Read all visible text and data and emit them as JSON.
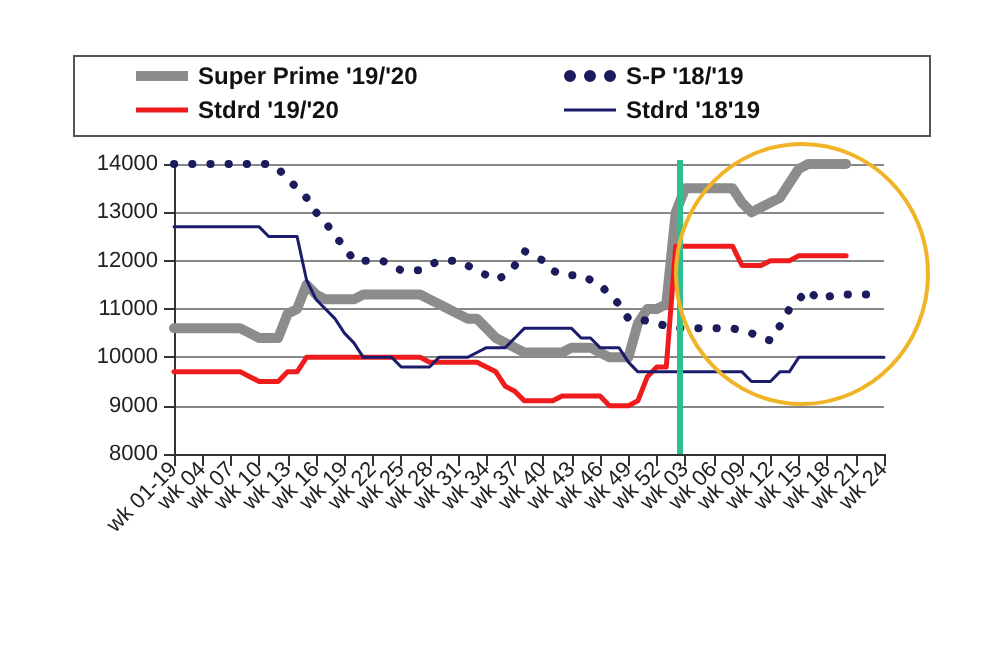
{
  "chart_data": {
    "type": "line",
    "categories": [
      "wk 01-19",
      null,
      null,
      "wk 04",
      null,
      null,
      "wk 07",
      null,
      null,
      "wk 10",
      null,
      null,
      "wk 13",
      null,
      null,
      "wk 16",
      null,
      null,
      "wk 19",
      null,
      null,
      "wk 22",
      null,
      null,
      "wk 25",
      null,
      null,
      "wk 28",
      null,
      null,
      "wk 31",
      null,
      null,
      "wk 34",
      null,
      null,
      "wk 37",
      null,
      null,
      "wk 40",
      null,
      null,
      "wk 43",
      null,
      null,
      "wk 46",
      null,
      null,
      "wk 49",
      null,
      null,
      "wk 52",
      null,
      null,
      "wk 03",
      null,
      null,
      "wk 06",
      null,
      null,
      "wk 09",
      null,
      null,
      "wk 12",
      null,
      null,
      "wk 15",
      null,
      null,
      "wk 18",
      null,
      null,
      "wk 21",
      null,
      null,
      "wk 24"
    ],
    "series": [
      {
        "name": "Super Prime '19/'20",
        "color": "#8c8c8c",
        "values": [
          10600,
          10600,
          10600,
          10600,
          10600,
          10600,
          10600,
          10600,
          10500,
          10400,
          10400,
          10400,
          10900,
          11000,
          11500,
          11300,
          11200,
          11200,
          11200,
          11200,
          11300,
          11300,
          11300,
          11300,
          11300,
          11300,
          11300,
          11200,
          11100,
          11000,
          10900,
          10800,
          10800,
          10600,
          10400,
          10300,
          10200,
          10100,
          10100,
          10100,
          10100,
          10100,
          10200,
          10200,
          10200,
          10100,
          10000,
          10000,
          10000,
          10700,
          11000,
          11000,
          11100,
          13000,
          13500,
          13500,
          13500,
          13500,
          13500,
          13500,
          13200,
          13000,
          13100,
          13200,
          13300,
          13600,
          13900,
          14000,
          14000,
          14000,
          14000,
          14000,
          null,
          null,
          null,
          null
        ]
      },
      {
        "name": "S-P '18/'19",
        "color": "#1c1c5c",
        "line_style": "dotted",
        "values": [
          14000,
          14000,
          14000,
          14000,
          14000,
          14000,
          14000,
          14000,
          14000,
          14000,
          14000,
          13900,
          13700,
          13500,
          13300,
          13000,
          12800,
          12500,
          12300,
          12000,
          12000,
          12000,
          12000,
          11900,
          11800,
          11800,
          11800,
          11900,
          12000,
          12000,
          12000,
          11900,
          11800,
          11700,
          11600,
          11700,
          11900,
          12200,
          12100,
          12000,
          11800,
          11700,
          11700,
          11700,
          11600,
          11500,
          11300,
          11100,
          10800,
          10800,
          10750,
          10700,
          10650,
          10600,
          10600,
          10600,
          10600,
          10600,
          10600,
          10600,
          10550,
          10500,
          10400,
          10350,
          10650,
          11000,
          11200,
          11400,
          11200,
          11250,
          11300,
          11300,
          11300,
          11300,
          11300,
          11300
        ]
      },
      {
        "name": "Stdrd '19/'20",
        "color": "#ee1c1c",
        "values": [
          9700,
          9700,
          9700,
          9700,
          9700,
          9700,
          9700,
          9700,
          9600,
          9500,
          9500,
          9500,
          9700,
          9700,
          10000,
          10000,
          10000,
          10000,
          10000,
          10000,
          10000,
          10000,
          10000,
          10000,
          10000,
          10000,
          10000,
          9900,
          9900,
          9900,
          9900,
          9900,
          9900,
          9800,
          9700,
          9400,
          9300,
          9100,
          9100,
          9100,
          9100,
          9200,
          9200,
          9200,
          9200,
          9200,
          9000,
          9000,
          9000,
          9100,
          9600,
          9800,
          9800,
          12300,
          12300,
          12300,
          12300,
          12300,
          12300,
          12300,
          11900,
          11900,
          11900,
          12000,
          12000,
          12000,
          12100,
          12100,
          12100,
          12100,
          12100,
          12100,
          null,
          null,
          null,
          null
        ]
      },
      {
        "name": "Stdrd '18'19",
        "color": "#1c1c6c",
        "values": [
          12700,
          12700,
          12700,
          12700,
          12700,
          12700,
          12700,
          12700,
          12700,
          12700,
          12500,
          12500,
          12500,
          12500,
          11600,
          11200,
          11000,
          10800,
          10500,
          10300,
          10000,
          10000,
          10000,
          10000,
          9800,
          9800,
          9800,
          9800,
          10000,
          10000,
          10000,
          10000,
          10100,
          10200,
          10200,
          10200,
          10400,
          10600,
          10600,
          10600,
          10600,
          10600,
          10600,
          10400,
          10400,
          10200,
          10200,
          10200,
          9900,
          9700,
          9700,
          9700,
          9700,
          9700,
          9700,
          9700,
          9700,
          9700,
          9700,
          9700,
          9700,
          9500,
          9500,
          9500,
          9700,
          9700,
          10000,
          10000,
          10000,
          10000,
          10000,
          10000,
          10000,
          10000,
          10000,
          10000
        ]
      }
    ],
    "ylim": [
      8000,
      14000
    ],
    "yticks": [
      8000,
      9000,
      10000,
      11000,
      12000,
      13000,
      14000
    ],
    "grid": "y",
    "legend": "top",
    "marker": "none",
    "line_style": "solid"
  }
}
